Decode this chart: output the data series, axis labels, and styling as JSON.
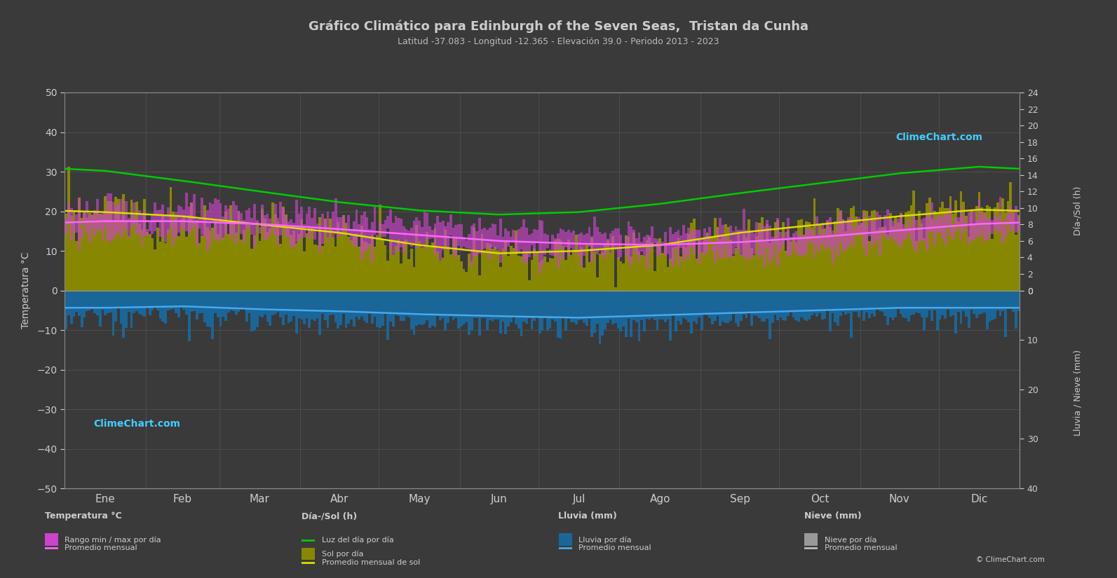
{
  "title": "Gráfico Climático para Edinburgh of the Seven Seas,  Tristan da Cunha",
  "subtitle": "Latitud -37.083 - Longitud -12.365 - Elevación 39.0 - Periodo 2013 - 2023",
  "bg_color": "#3a3a3a",
  "plot_bg_color": "#3a3a3a",
  "grid_color": "#555555",
  "months": [
    "Ene",
    "Feb",
    "Mar",
    "Abr",
    "May",
    "Jun",
    "Jul",
    "Ago",
    "Sep",
    "Oct",
    "Nov",
    "Dic"
  ],
  "temp_ylim": [
    -50,
    50
  ],
  "temp_avg_monthly": [
    17.5,
    17.5,
    16.8,
    15.5,
    14.0,
    12.5,
    11.8,
    11.5,
    12.2,
    13.5,
    15.2,
    16.8
  ],
  "temp_max_daily": [
    20.5,
    20.5,
    19.8,
    18.5,
    17.0,
    15.5,
    14.8,
    14.5,
    15.2,
    16.5,
    18.2,
    19.8
  ],
  "temp_min_daily": [
    14.5,
    14.5,
    13.8,
    12.5,
    11.0,
    9.5,
    8.8,
    8.5,
    9.2,
    10.5,
    12.2,
    13.8
  ],
  "daylight_monthly": [
    14.5,
    13.3,
    12.0,
    10.7,
    9.7,
    9.2,
    9.5,
    10.5,
    11.8,
    13.0,
    14.2,
    15.0
  ],
  "sunshine_daily_avg": [
    9.5,
    9.0,
    8.0,
    7.0,
    5.5,
    4.5,
    4.8,
    5.5,
    7.0,
    8.0,
    9.0,
    9.8
  ],
  "sunshine_monthly_avg": [
    9.5,
    9.0,
    8.0,
    7.0,
    5.5,
    4.5,
    4.8,
    5.5,
    7.0,
    8.0,
    9.0,
    9.8
  ],
  "rain_daily_mm": [
    3.5,
    3.2,
    3.8,
    4.2,
    4.8,
    5.2,
    5.5,
    5.0,
    4.5,
    4.0,
    3.5,
    3.5
  ],
  "rain_monthly_avg_mm": [
    3.5,
    3.2,
    3.8,
    4.2,
    4.8,
    5.2,
    5.5,
    5.0,
    4.5,
    4.0,
    3.5,
    3.5
  ],
  "daylight_color": "#00cc00",
  "sunshine_avg_color": "#dddd00",
  "temp_avg_color": "#ff66ff",
  "rain_bar_color": "#1a6699",
  "rain_avg_color": "#44aaee",
  "text_color": "#cccccc",
  "axis_label_color": "#bbbbbb",
  "ylabel_left": "Temperatura °C",
  "ylabel_right_top": "Día-/Sol (h)",
  "ylabel_right_bottom": "Lluvia / Nieve (mm)"
}
